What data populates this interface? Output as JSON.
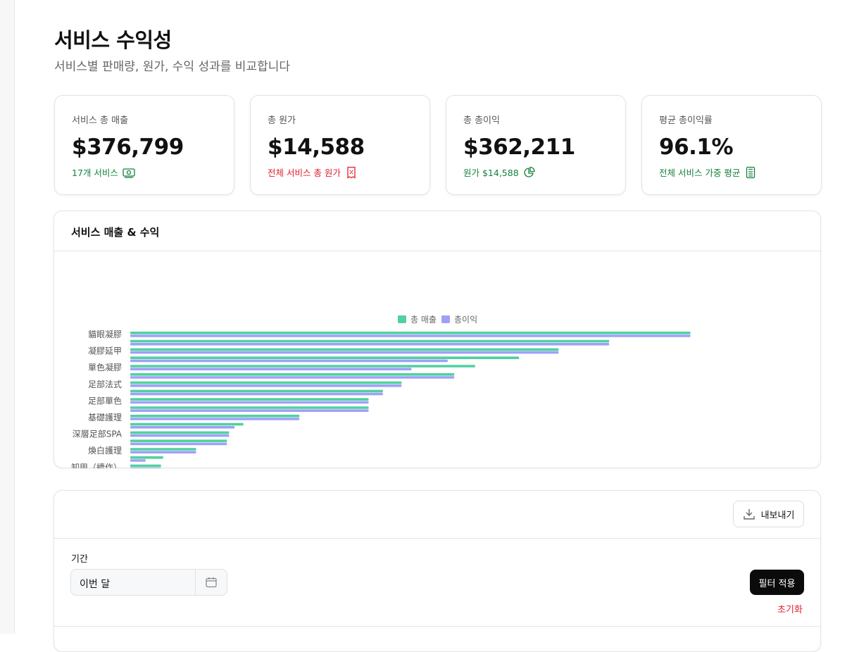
{
  "header": {
    "title": "서비스 수익성",
    "subtitle": "서비스별 판매량, 원가, 수익 성과를 비교합니다"
  },
  "cards": [
    {
      "label": "서비스 총 매출",
      "value": "$376,799",
      "note": "17개 서비스",
      "icon": "money-icon",
      "tone": "green"
    },
    {
      "label": "총 원가",
      "value": "$14,588",
      "note": "전체 서비스 총 원가",
      "icon": "receipt-percent-icon",
      "tone": "red"
    },
    {
      "label": "총 총이익",
      "value": "$362,211",
      "note": "원가 $14,588",
      "icon": "pie-chart-icon",
      "tone": "green"
    },
    {
      "label": "평균 총이익률",
      "value": "96.1%",
      "note": "전체 서비스 가중 평균",
      "icon": "calculator-icon",
      "tone": "green"
    }
  ],
  "chart_panel": {
    "title": "서비스 매출 & 수익"
  },
  "chart_data": {
    "type": "bar",
    "orientation": "horizontal",
    "categories": [
      "貓眼凝膠",
      "",
      "凝膠延甲",
      "",
      "單色凝膠",
      "",
      "足部法式",
      "",
      "足部單色",
      "",
      "基礎護理",
      "",
      "深層足部SPA",
      "",
      "煥白護理",
      "",
      "卸甲（續作）"
    ],
    "series": [
      {
        "name": "총 매출",
        "color": "#4fd1a0",
        "values": [
          51000,
          43600,
          39000,
          35400,
          31400,
          29500,
          24700,
          23000,
          21700,
          21700,
          15400,
          10300,
          9000,
          8800,
          6000,
          3000,
          2800
        ]
      },
      {
        "name": "총이익",
        "color": "#a0a0f8",
        "values": [
          51000,
          43600,
          39000,
          28900,
          25600,
          29500,
          24700,
          23000,
          21700,
          21700,
          15400,
          9500,
          9000,
          8800,
          6000,
          1400,
          2800
        ]
      }
    ],
    "xlim": [
      0,
      60000
    ],
    "xticks": [
      "0",
      "10,000",
      "20,000",
      "30,000",
      "40,000",
      "50,000",
      "60,000"
    ],
    "legend": "top-center",
    "grid": false
  },
  "filters": {
    "export_label": "내보내기",
    "period_label": "기간",
    "period_value": "이번 달",
    "apply_label": "필터 적용",
    "reset_label": "초기화"
  }
}
